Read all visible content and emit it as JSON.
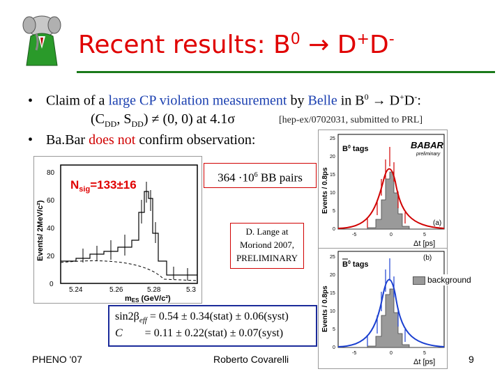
{
  "slide": {
    "title": "Recent results: B",
    "title_sup0": "0",
    "title_arrow": " → D",
    "title_supplus": "+",
    "title_d": "D",
    "title_supminus": "-"
  },
  "bullets": {
    "b1_pre": "Claim of a ",
    "b1_large": "large CP violation measurement",
    "b1_by": " by ",
    "b1_belle": "Belle",
    "b1_in": " in B",
    "b1_sup0": "0",
    "b1_arrow": " → D",
    "b1_plus": "+",
    "b1_d": "D",
    "b1_minus": "-",
    "b1_colon": ":",
    "b1_line2": "(C",
    "b1_dd1": "DD",
    "b1_comma": ", S",
    "b1_dd2": "DD",
    "b1_neq": ") ≠ (0, 0) at 4.1σ",
    "b1_ref": "[hep-ex/0702031, submitted to PRL]",
    "b2_pre": "Ba.Bar ",
    "b2_red": "does not",
    "b2_post": " confirm observation:"
  },
  "left_plot": {
    "nsig": "N",
    "nsig_sub": "sig",
    "nsig_val": "=133±16",
    "ylabel": "Events/ 2MeV/c²)",
    "xlabel": "m",
    "xlabel_sub": "ES",
    "xlabel_unit": " (GeV/c²)",
    "yticks": [
      "0",
      "20",
      "40",
      "60",
      "80"
    ],
    "xticks": [
      "5.24",
      "5.26",
      "5.28",
      "5.3"
    ]
  },
  "pairs_box": {
    "text": "364 ·10",
    "sup": "6",
    "bb": " BB pairs"
  },
  "lange_box": {
    "line1": "D. Lange at",
    "line2": "Moriond 2007,",
    "line3": "PRELIMINARY"
  },
  "right_top": {
    "tag": "B",
    "tag_sup": "0",
    "tag_rest": " tags",
    "logo": "BABAR",
    "logo_sub": "preliminary",
    "ylabel": "Events / 0.8ps",
    "xlabel": "Δt [ps]",
    "label_a": "(a)",
    "yticks": [
      "0",
      "5",
      "10",
      "15",
      "20",
      "25"
    ],
    "xticks": [
      "-5",
      "0",
      "5"
    ]
  },
  "right_bottom": {
    "tag": "B",
    "tag_sup": "0",
    "tag_rest": " tags",
    "ylabel": "Events / 0.8ps",
    "xlabel": "Δt [ps]",
    "label_b": "(b)",
    "yticks": [
      "0",
      "5",
      "10",
      "15",
      "20",
      "25"
    ],
    "xticks": [
      "-5",
      "0",
      "5"
    ]
  },
  "legend": {
    "background": "background"
  },
  "results": {
    "sin_pre": "sin2β",
    "sin_sub": "eff",
    "sin_val": " = 0.54 ± 0.34(stat) ± 0.06(syst)",
    "c_sym": "C",
    "c_val": "= 0.11 ± 0.22(stat) ± 0.07(syst)"
  },
  "footer": {
    "left": "PHENO '07",
    "center": "Roberto Covarelli",
    "page": "9"
  },
  "colors": {
    "title": "#e00000",
    "rule": "#1a7a1a",
    "blue": "#1a3fb0",
    "red": "#d00000",
    "results_border": "#1a2a9a"
  }
}
